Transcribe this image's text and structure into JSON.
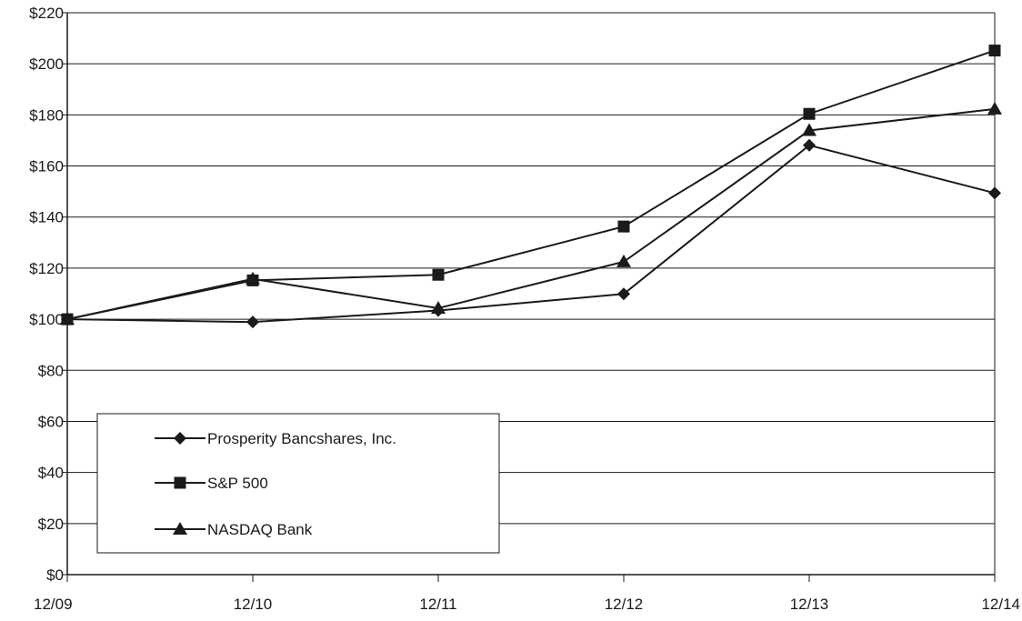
{
  "chart_data": {
    "type": "line",
    "categories": [
      "12/09",
      "12/10",
      "12/11",
      "12/12",
      "12/13",
      "12/14"
    ],
    "y_ticks": [
      "$0",
      "$20",
      "$40",
      "$60",
      "$80",
      "$100",
      "$120",
      "$140",
      "$160",
      "$180",
      "$200",
      "$220"
    ],
    "ylim": [
      0,
      220
    ],
    "grid": true,
    "legend_position": "bottom-left",
    "series": [
      {
        "name": "Prosperity Bancshares, Inc.",
        "marker": "diamond",
        "values": [
          100,
          98.9,
          103.4,
          109.9,
          168.1,
          149.4
        ]
      },
      {
        "name": "S&P 500",
        "marker": "square",
        "values": [
          100,
          115.2,
          117.4,
          136.3,
          180.4,
          205.2
        ]
      },
      {
        "name": "NASDAQ Bank",
        "marker": "triangle",
        "values": [
          100,
          115.8,
          104.3,
          122.5,
          173.9,
          182.3
        ]
      }
    ],
    "colors": {
      "line": "#1a1a1a",
      "grid": "#1a1a1a",
      "background": "#ffffff"
    }
  }
}
